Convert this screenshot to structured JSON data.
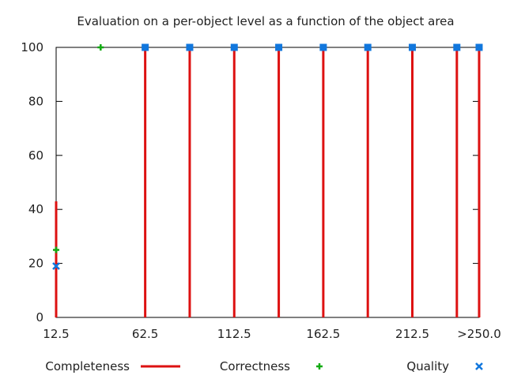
{
  "chart_data": {
    "type": "bar",
    "title": "Evaluation on a per-object level as a function of the object area",
    "xlabel": "",
    "ylabel": "",
    "ylim": [
      0,
      100
    ],
    "yticks": [
      0,
      20,
      40,
      60,
      80,
      100
    ],
    "xlim": [
      12.5,
      250
    ],
    "xticks": [
      {
        "value": 12.5,
        "label": "12.5"
      },
      {
        "value": 62.5,
        "label": "62.5"
      },
      {
        "value": 112.5,
        "label": "112.5"
      },
      {
        "value": 162.5,
        "label": "162.5"
      },
      {
        "value": 212.5,
        "label": "212.5"
      },
      {
        "value": 250,
        "label": ">250.0"
      }
    ],
    "x": [
      12.5,
      37.5,
      62.5,
      87.5,
      112.5,
      137.5,
      162.5,
      187.5,
      212.5,
      237.5,
      250
    ],
    "series": [
      {
        "name": "Completeness",
        "style": "impulses",
        "color": "#dd1111",
        "values": [
          43,
          0,
          100,
          100,
          100,
          100,
          100,
          100,
          100,
          100,
          100
        ]
      },
      {
        "name": "Correctness",
        "style": "points",
        "marker": "plus",
        "color": "#11aa11",
        "values": [
          25,
          100,
          100,
          100,
          100,
          100,
          100,
          100,
          100,
          100,
          100
        ]
      },
      {
        "name": "Quality",
        "style": "points",
        "marker": "cross",
        "color": "#1177dd",
        "values": [
          19,
          0,
          100,
          100,
          100,
          100,
          100,
          100,
          100,
          100,
          100
        ]
      }
    ],
    "legend": "bottom",
    "grid": false
  }
}
